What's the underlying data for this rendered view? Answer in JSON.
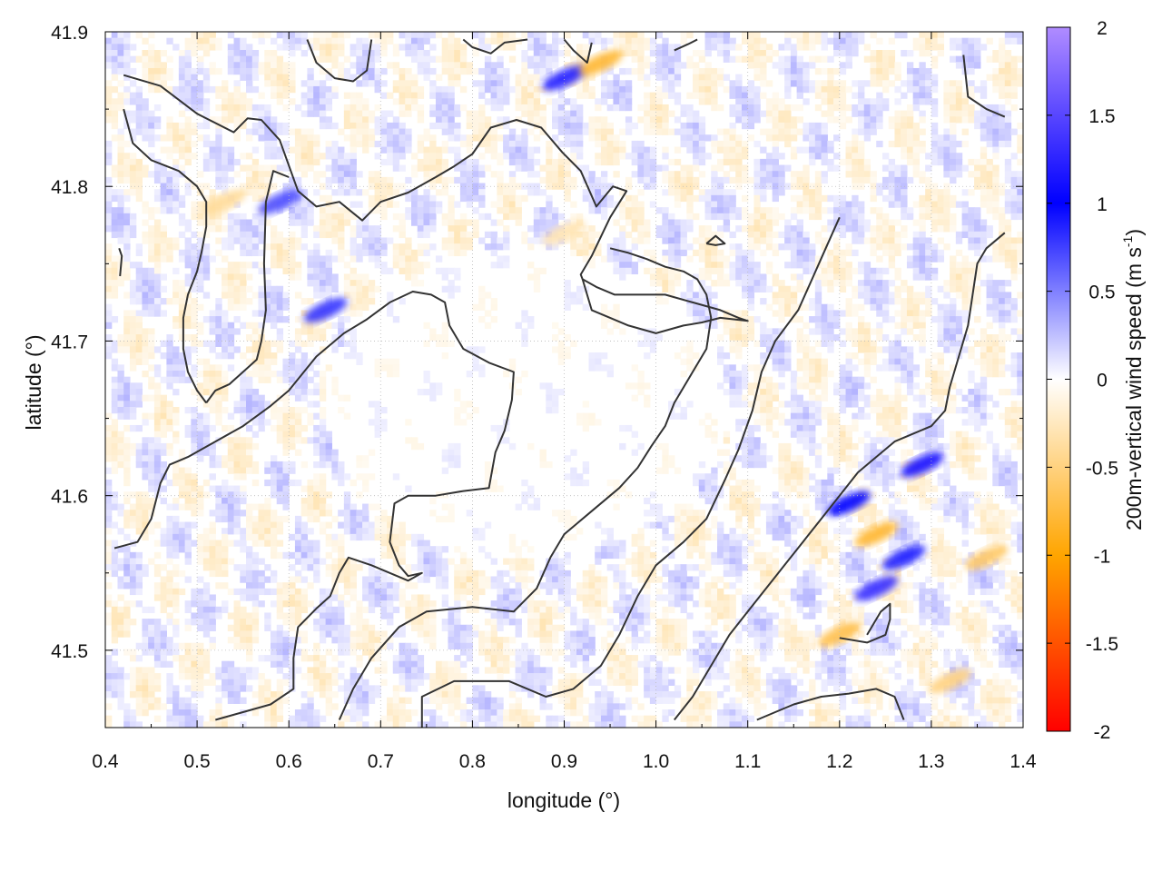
{
  "chart_data": {
    "type": "heatmap",
    "title": "",
    "xlabel": "longitude (°)",
    "ylabel": "latitude (°)",
    "colorbar_label": {
      "prefix": "200m-vertical wind speed (m s",
      "superscript": "-1",
      "suffix": ")"
    },
    "xlim": [
      0.4,
      1.4
    ],
    "ylim": [
      41.45,
      41.9
    ],
    "x_ticks": [
      "0.4",
      "0.5",
      "0.6",
      "0.7",
      "0.8",
      "0.9",
      "1.0",
      "1.1",
      "1.2",
      "1.3",
      "1.4"
    ],
    "y_ticks": [
      "41.5",
      "41.6",
      "41.7",
      "41.8",
      "41.9"
    ],
    "zlim": [
      -2,
      2
    ],
    "colorbar_ticks": [
      "2",
      "1.5",
      "1",
      "0.5",
      "0",
      "-0.5",
      "-1",
      "-1.5",
      "-2"
    ],
    "colorscale": [
      {
        "value": -2,
        "color": "#ff0000"
      },
      {
        "value": -1,
        "color": "#ffa500"
      },
      {
        "value": 0,
        "color": "#ffffff"
      },
      {
        "value": 1,
        "color": "#0000ff"
      },
      {
        "value": 2,
        "color": "#b08cff"
      }
    ],
    "grid": true,
    "contour_color": "#333333",
    "field_features": [
      {
        "kind": "updraft",
        "lon": 1.24,
        "lat": 41.54,
        "w": 1.3
      },
      {
        "kind": "updraft",
        "lon": 1.29,
        "lat": 41.62,
        "w": 1.1
      },
      {
        "kind": "updraft",
        "lon": 1.21,
        "lat": 41.595,
        "w": 1.0
      },
      {
        "kind": "updraft",
        "lon": 1.27,
        "lat": 41.56,
        "w": 0.9
      },
      {
        "kind": "updraft",
        "lon": 0.9,
        "lat": 41.87,
        "w": 1.2
      },
      {
        "kind": "updraft",
        "lon": 0.64,
        "lat": 41.72,
        "w": 0.8
      },
      {
        "kind": "updraft",
        "lon": 0.59,
        "lat": 41.79,
        "w": 0.7
      },
      {
        "kind": "downdraft",
        "lon": 1.24,
        "lat": 41.575,
        "w": -0.8
      },
      {
        "kind": "downdraft",
        "lon": 1.2,
        "lat": 41.51,
        "w": -0.7
      },
      {
        "kind": "downdraft",
        "lon": 1.36,
        "lat": 41.56,
        "w": -0.6
      },
      {
        "kind": "downdraft",
        "lon": 0.94,
        "lat": 41.88,
        "w": -0.8
      },
      {
        "kind": "downdraft",
        "lon": 0.53,
        "lat": 41.79,
        "w": -0.4
      },
      {
        "kind": "downdraft",
        "lon": 0.9,
        "lat": 41.77,
        "w": -0.3
      },
      {
        "kind": "downdraft",
        "lon": 1.32,
        "lat": 41.48,
        "w": -0.5
      }
    ],
    "contours": [
      [
        [
          0.42,
          41.872
        ],
        [
          0.46,
          41.865
        ],
        [
          0.5,
          41.847
        ],
        [
          0.54,
          41.835
        ],
        [
          0.555,
          41.844
        ],
        [
          0.57,
          41.843
        ],
        [
          0.59,
          41.83
        ],
        [
          0.61,
          41.797
        ],
        [
          0.63,
          41.787
        ],
        [
          0.655,
          41.79
        ],
        [
          0.68,
          41.778
        ],
        [
          0.7,
          41.79
        ],
        [
          0.73,
          41.796
        ],
        [
          0.76,
          41.806
        ],
        [
          0.78,
          41.813
        ],
        [
          0.8,
          41.821
        ],
        [
          0.82,
          41.838
        ],
        [
          0.848,
          41.843
        ],
        [
          0.875,
          41.838
        ],
        [
          0.898,
          41.822
        ],
        [
          0.918,
          41.81
        ],
        [
          0.935,
          41.787
        ],
        [
          0.953,
          41.8
        ],
        [
          0.968,
          41.797
        ],
        [
          0.95,
          41.78
        ],
        [
          0.93,
          41.755
        ],
        [
          0.918,
          41.743
        ],
        [
          0.92,
          41.74
        ],
        [
          0.935,
          41.735
        ],
        [
          0.955,
          41.73
        ],
        [
          0.975,
          41.73
        ],
        [
          1.01,
          41.73
        ],
        [
          1.04,
          41.725
        ],
        [
          1.07,
          41.72
        ],
        [
          1.09,
          41.715
        ],
        [
          1.1,
          41.713
        ],
        [
          1.07,
          41.715
        ],
        [
          1.05,
          41.712
        ],
        [
          1.03,
          41.71
        ],
        [
          1.0,
          41.705
        ],
        [
          0.97,
          41.71
        ],
        [
          0.95,
          41.715
        ],
        [
          0.93,
          41.72
        ],
        [
          0.92,
          41.74
        ]
      ],
      [
        [
          0.42,
          41.85
        ],
        [
          0.43,
          41.828
        ],
        [
          0.45,
          41.817
        ],
        [
          0.48,
          41.81
        ],
        [
          0.5,
          41.8
        ],
        [
          0.51,
          41.79
        ],
        [
          0.51,
          41.774
        ],
        [
          0.505,
          41.758
        ],
        [
          0.5,
          41.745
        ],
        [
          0.49,
          41.73
        ],
        [
          0.485,
          41.715
        ],
        [
          0.485,
          41.695
        ],
        [
          0.49,
          41.68
        ],
        [
          0.5,
          41.668
        ],
        [
          0.51,
          41.66
        ]
      ],
      [
        [
          0.51,
          41.66
        ],
        [
          0.52,
          41.668
        ],
        [
          0.535,
          41.672
        ],
        [
          0.55,
          41.68
        ],
        [
          0.565,
          41.688
        ],
        [
          0.57,
          41.7
        ],
        [
          0.575,
          41.72
        ],
        [
          0.573,
          41.75
        ],
        [
          0.575,
          41.79
        ],
        [
          0.583,
          41.81
        ],
        [
          0.6,
          41.806
        ]
      ],
      [
        [
          0.415,
          41.76
        ],
        [
          0.418,
          41.755
        ],
        [
          0.416,
          41.742
        ]
      ],
      [
        [
          0.41,
          41.566
        ],
        [
          0.435,
          41.57
        ],
        [
          0.45,
          41.585
        ],
        [
          0.46,
          41.608
        ],
        [
          0.47,
          41.62
        ],
        [
          0.49,
          41.625
        ],
        [
          0.52,
          41.635
        ],
        [
          0.55,
          41.645
        ],
        [
          0.58,
          41.658
        ],
        [
          0.6,
          41.668
        ],
        [
          0.63,
          41.69
        ],
        [
          0.66,
          41.705
        ],
        [
          0.685,
          41.714
        ],
        [
          0.71,
          41.725
        ],
        [
          0.735,
          41.732
        ],
        [
          0.755,
          41.73
        ],
        [
          0.77,
          41.725
        ],
        [
          0.775,
          41.71
        ],
        [
          0.79,
          41.695
        ],
        [
          0.818,
          41.686
        ],
        [
          0.845,
          41.68
        ],
        [
          0.843,
          41.662
        ],
        [
          0.835,
          41.642
        ],
        [
          0.825,
          41.628
        ],
        [
          0.818,
          41.605
        ],
        [
          0.79,
          41.603
        ],
        [
          0.76,
          41.6
        ],
        [
          0.73,
          41.6
        ],
        [
          0.715,
          41.595
        ],
        [
          0.71,
          41.57
        ],
        [
          0.72,
          41.555
        ],
        [
          0.73,
          41.548
        ],
        [
          0.745,
          41.55
        ],
        [
          0.73,
          41.545
        ],
        [
          0.71,
          41.55
        ],
        [
          0.69,
          41.555
        ],
        [
          0.665,
          41.56
        ],
        [
          0.655,
          41.55
        ],
        [
          0.645,
          41.535
        ],
        [
          0.63,
          41.527
        ],
        [
          0.61,
          41.515
        ],
        [
          0.605,
          41.495
        ],
        [
          0.605,
          41.475
        ],
        [
          0.58,
          41.465
        ],
        [
          0.55,
          41.46
        ],
        [
          0.52,
          41.455
        ]
      ],
      [
        [
          0.655,
          41.455
        ],
        [
          0.67,
          41.475
        ],
        [
          0.69,
          41.495
        ],
        [
          0.72,
          41.515
        ],
        [
          0.75,
          41.525
        ],
        [
          0.8,
          41.528
        ],
        [
          0.845,
          41.525
        ],
        [
          0.87,
          41.54
        ],
        [
          0.885,
          41.56
        ],
        [
          0.9,
          41.575
        ],
        [
          0.93,
          41.59
        ],
        [
          0.96,
          41.605
        ],
        [
          0.98,
          41.618
        ],
        [
          0.995,
          41.632
        ],
        [
          1.01,
          41.645
        ],
        [
          1.02,
          41.66
        ],
        [
          1.04,
          41.68
        ],
        [
          1.055,
          41.695
        ],
        [
          1.06,
          41.715
        ],
        [
          1.055,
          41.73
        ],
        [
          1.045,
          41.74
        ],
        [
          1.03,
          41.745
        ],
        [
          1.01,
          41.748
        ],
        [
          0.99,
          41.753
        ],
        [
          0.97,
          41.757
        ],
        [
          0.95,
          41.76
        ]
      ],
      [
        [
          0.745,
          41.45
        ],
        [
          0.745,
          41.47
        ],
        [
          0.78,
          41.48
        ],
        [
          0.84,
          41.48
        ],
        [
          0.88,
          41.47
        ],
        [
          0.91,
          41.475
        ],
        [
          0.94,
          41.49
        ],
        [
          0.96,
          41.51
        ],
        [
          0.98,
          41.535
        ],
        [
          1.0,
          41.555
        ],
        [
          1.03,
          41.57
        ],
        [
          1.055,
          41.585
        ],
        [
          1.075,
          41.61
        ],
        [
          1.09,
          41.63
        ],
        [
          1.105,
          41.655
        ],
        [
          1.115,
          41.68
        ],
        [
          1.13,
          41.7
        ],
        [
          1.155,
          41.72
        ],
        [
          1.17,
          41.74
        ],
        [
          1.185,
          41.76
        ],
        [
          1.2,
          41.78
        ]
      ],
      [
        [
          1.02,
          41.455
        ],
        [
          1.04,
          41.47
        ],
        [
          1.06,
          41.49
        ],
        [
          1.08,
          41.51
        ],
        [
          1.1,
          41.525
        ],
        [
          1.12,
          41.54
        ],
        [
          1.14,
          41.555
        ],
        [
          1.16,
          41.57
        ],
        [
          1.18,
          41.585
        ],
        [
          1.2,
          41.6
        ],
        [
          1.22,
          41.615
        ],
        [
          1.24,
          41.625
        ],
        [
          1.26,
          41.635
        ],
        [
          1.28,
          41.64
        ],
        [
          1.3,
          41.645
        ],
        [
          1.315,
          41.655
        ],
        [
          1.32,
          41.67
        ],
        [
          1.33,
          41.69
        ],
        [
          1.34,
          41.71
        ],
        [
          1.345,
          41.73
        ],
        [
          1.35,
          41.75
        ],
        [
          1.36,
          41.76
        ],
        [
          1.38,
          41.77
        ]
      ],
      [
        [
          1.2,
          41.508
        ],
        [
          1.23,
          41.505
        ],
        [
          1.25,
          41.51
        ],
        [
          1.255,
          41.52
        ],
        [
          1.255,
          41.53
        ],
        [
          1.245,
          41.525
        ],
        [
          1.23,
          41.51
        ]
      ],
      [
        [
          1.11,
          41.455
        ],
        [
          1.13,
          41.46
        ],
        [
          1.15,
          41.465
        ],
        [
          1.18,
          41.47
        ],
        [
          1.21,
          41.472
        ],
        [
          1.24,
          41.475
        ],
        [
          1.26,
          41.47
        ],
        [
          1.27,
          41.455
        ]
      ],
      [
        [
          0.62,
          41.895
        ],
        [
          0.63,
          41.88
        ],
        [
          0.65,
          41.87
        ],
        [
          0.67,
          41.868
        ],
        [
          0.685,
          41.875
        ],
        [
          0.69,
          41.895
        ]
      ],
      [
        [
          0.79,
          41.895
        ],
        [
          0.8,
          41.89
        ],
        [
          0.82,
          41.886
        ],
        [
          0.835,
          41.893
        ],
        [
          0.86,
          41.895
        ]
      ],
      [
        [
          0.9,
          41.895
        ],
        [
          0.91,
          41.888
        ],
        [
          0.925,
          41.88
        ],
        [
          0.93,
          41.893
        ]
      ],
      [
        [
          1.02,
          41.888
        ],
        [
          1.035,
          41.892
        ],
        [
          1.045,
          41.895
        ]
      ],
      [
        [
          1.335,
          41.885
        ],
        [
          1.34,
          41.858
        ],
        [
          1.36,
          41.85
        ],
        [
          1.38,
          41.845
        ]
      ],
      [
        [
          1.055,
          41.763
        ],
        [
          1.065,
          41.768
        ],
        [
          1.075,
          41.763
        ],
        [
          1.065,
          41.762
        ],
        [
          1.055,
          41.763
        ]
      ]
    ]
  }
}
